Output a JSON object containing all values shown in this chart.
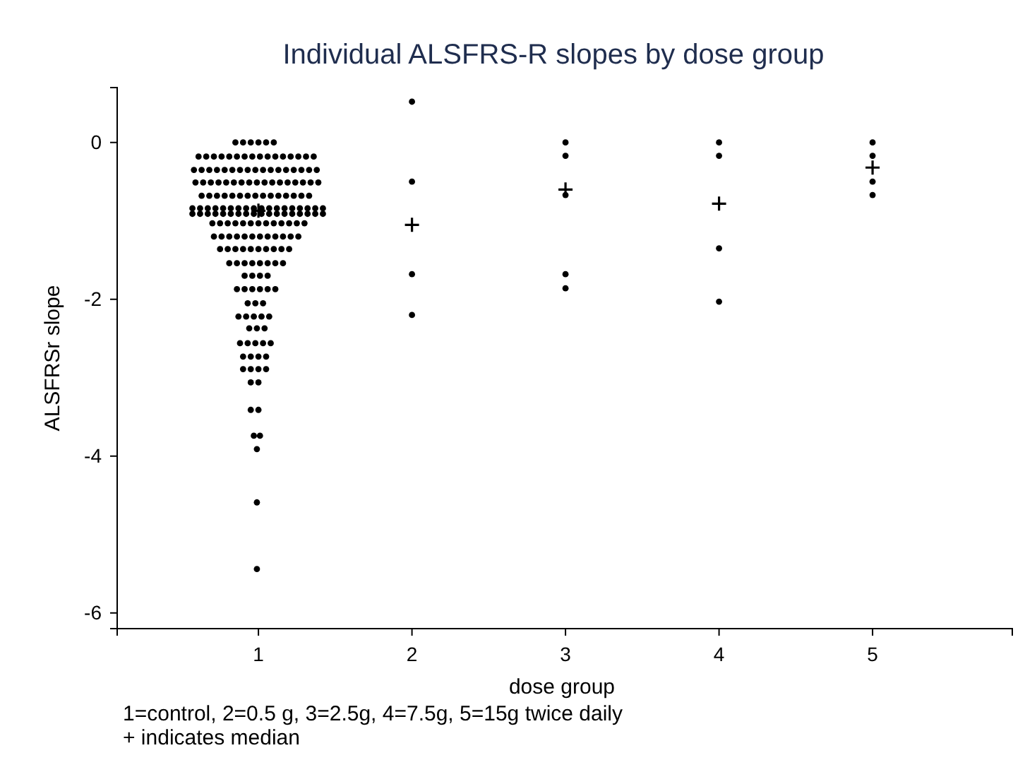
{
  "chart_data": {
    "type": "scatter",
    "title": "Individual ALSFRS-R slopes by dose group",
    "xlabel": "dose group",
    "ylabel": "ALSFRSr slope",
    "annotations": [
      "1=control, 2=0.5 g, 3=2.5g, 4=7.5g, 5=15g twice daily",
      "+ indicates median"
    ],
    "xlim": [
      0.08,
      5.91
    ],
    "xticks": [
      1,
      2,
      3,
      4,
      5
    ],
    "ylim": [
      -6.2,
      0.7
    ],
    "yticks": [
      0,
      -2,
      -4,
      -6
    ],
    "grid": false,
    "series": [
      {
        "marker": "circle",
        "color": "#000000",
        "x": [
          0.85,
          0.9,
          0.95,
          1.0,
          1.05,
          1.1,
          0.61,
          0.66,
          0.71,
          0.76,
          0.81,
          0.86,
          0.91,
          0.96,
          1.01,
          1.06,
          1.11,
          1.16,
          1.21,
          1.26,
          1.31,
          1.36,
          0.58,
          0.63,
          0.68,
          0.73,
          0.78,
          0.83,
          0.88,
          0.93,
          0.98,
          1.03,
          1.08,
          1.13,
          1.18,
          1.23,
          1.28,
          1.33,
          1.38,
          0.59,
          0.64,
          0.69,
          0.74,
          0.79,
          0.84,
          0.89,
          0.94,
          0.99,
          1.04,
          1.09,
          1.14,
          1.19,
          1.24,
          1.29,
          1.34,
          1.39,
          0.63,
          0.68,
          0.73,
          0.78,
          0.83,
          0.88,
          0.93,
          0.98,
          1.03,
          1.08,
          1.13,
          1.18,
          1.23,
          1.28,
          1.33,
          0.57,
          0.62,
          0.67,
          0.72,
          0.77,
          0.82,
          0.87,
          0.92,
          0.97,
          1.02,
          1.07,
          1.12,
          1.17,
          1.22,
          1.27,
          1.32,
          1.37,
          1.42,
          0.57,
          0.62,
          0.67,
          0.72,
          0.77,
          0.82,
          0.87,
          0.92,
          0.97,
          1.02,
          1.07,
          1.12,
          1.17,
          1.22,
          1.27,
          1.32,
          1.37,
          1.42,
          0.7,
          0.75,
          0.8,
          0.85,
          0.9,
          0.95,
          1.0,
          1.05,
          1.1,
          1.15,
          1.2,
          1.25,
          1.3,
          0.71,
          0.76,
          0.81,
          0.86,
          0.91,
          0.96,
          1.01,
          1.06,
          1.11,
          1.16,
          1.21,
          1.26,
          0.75,
          0.8,
          0.85,
          0.9,
          0.95,
          1.0,
          1.05,
          1.1,
          1.15,
          1.2,
          0.81,
          0.86,
          0.91,
          0.96,
          1.01,
          1.06,
          1.11,
          1.16,
          0.91,
          0.96,
          1.01,
          1.06,
          0.86,
          0.91,
          0.96,
          1.01,
          1.06,
          1.11,
          0.93,
          0.98,
          1.03,
          0.87,
          0.92,
          0.97,
          1.02,
          1.07,
          0.94,
          0.99,
          1.04,
          0.88,
          0.93,
          0.98,
          1.03,
          1.08,
          0.9,
          0.95,
          1.0,
          1.05,
          0.9,
          0.95,
          1.0,
          1.05,
          0.95,
          1.0,
          0.95,
          1.0,
          0.97,
          1.01,
          0.99,
          0.99,
          0.99
        ],
        "values": [
          0,
          0,
          0,
          0,
          0,
          0,
          -0.18,
          -0.18,
          -0.18,
          -0.18,
          -0.18,
          -0.18,
          -0.18,
          -0.18,
          -0.18,
          -0.18,
          -0.18,
          -0.18,
          -0.18,
          -0.18,
          -0.18,
          -0.18,
          -0.35,
          -0.35,
          -0.35,
          -0.35,
          -0.35,
          -0.35,
          -0.35,
          -0.35,
          -0.35,
          -0.35,
          -0.35,
          -0.35,
          -0.35,
          -0.35,
          -0.35,
          -0.35,
          -0.35,
          -0.51,
          -0.51,
          -0.51,
          -0.51,
          -0.51,
          -0.51,
          -0.51,
          -0.51,
          -0.51,
          -0.51,
          -0.51,
          -0.51,
          -0.51,
          -0.51,
          -0.51,
          -0.51,
          -0.51,
          -0.68,
          -0.68,
          -0.68,
          -0.68,
          -0.68,
          -0.68,
          -0.68,
          -0.68,
          -0.68,
          -0.68,
          -0.68,
          -0.68,
          -0.68,
          -0.68,
          -0.68,
          -0.84,
          -0.84,
          -0.84,
          -0.84,
          -0.84,
          -0.84,
          -0.84,
          -0.84,
          -0.84,
          -0.84,
          -0.84,
          -0.84,
          -0.84,
          -0.84,
          -0.84,
          -0.84,
          -0.84,
          -0.84,
          -0.91,
          -0.91,
          -0.91,
          -0.91,
          -0.91,
          -0.91,
          -0.91,
          -0.91,
          -0.91,
          -0.91,
          -0.91,
          -0.91,
          -0.91,
          -0.91,
          -0.91,
          -0.91,
          -0.91,
          -0.91,
          -1.03,
          -1.03,
          -1.03,
          -1.03,
          -1.03,
          -1.03,
          -1.03,
          -1.03,
          -1.03,
          -1.03,
          -1.03,
          -1.03,
          -1.03,
          -1.2,
          -1.2,
          -1.2,
          -1.2,
          -1.2,
          -1.2,
          -1.2,
          -1.2,
          -1.2,
          -1.2,
          -1.2,
          -1.2,
          -1.36,
          -1.36,
          -1.36,
          -1.36,
          -1.36,
          -1.36,
          -1.36,
          -1.36,
          -1.36,
          -1.36,
          -1.54,
          -1.54,
          -1.54,
          -1.54,
          -1.54,
          -1.54,
          -1.54,
          -1.54,
          -1.7,
          -1.7,
          -1.7,
          -1.7,
          -1.87,
          -1.87,
          -1.87,
          -1.87,
          -1.87,
          -1.87,
          -2.05,
          -2.05,
          -2.05,
          -2.22,
          -2.22,
          -2.22,
          -2.22,
          -2.22,
          -2.37,
          -2.37,
          -2.37,
          -2.56,
          -2.56,
          -2.56,
          -2.56,
          -2.56,
          -2.73,
          -2.73,
          -2.73,
          -2.73,
          -2.89,
          -2.89,
          -2.89,
          -2.89,
          -3.06,
          -3.06,
          -3.41,
          -3.41,
          -3.74,
          -3.74,
          -3.91,
          -4.59,
          -5.44
        ]
      },
      {
        "marker": "circle",
        "color": "#000000",
        "x": [
          2,
          2,
          2,
          2,
          3,
          3,
          3,
          3,
          3,
          4,
          4,
          4,
          4,
          5,
          5,
          5,
          5
        ],
        "values": [
          0.52,
          -0.5,
          -1.68,
          -2.2,
          0,
          -0.17,
          -0.67,
          -1.68,
          -1.86,
          0,
          -0.17,
          -1.35,
          -2.03,
          0,
          -0.17,
          -0.5,
          -0.67
        ]
      },
      {
        "marker": "cross",
        "color": "#000000",
        "x": [
          1,
          2,
          3,
          4,
          5
        ],
        "values": [
          -0.87,
          -1.05,
          -0.6,
          -0.78,
          -0.32
        ]
      }
    ]
  }
}
